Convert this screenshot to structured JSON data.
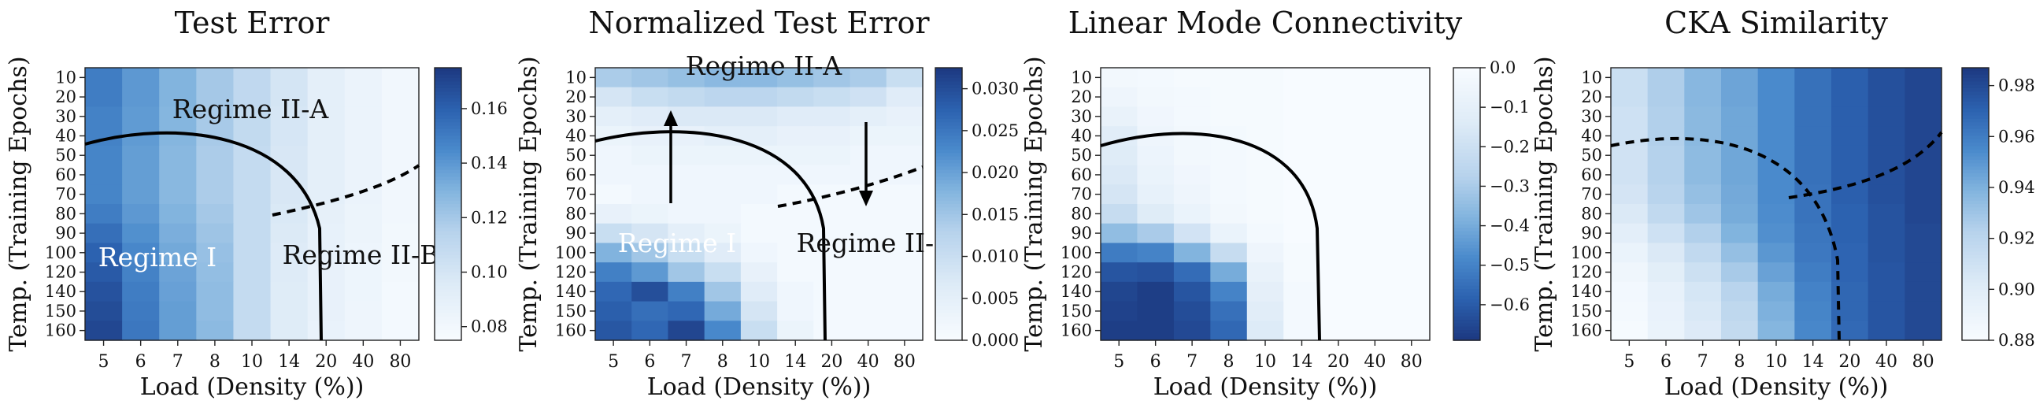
{
  "chart_data": [
    {
      "type": "heatmap",
      "title": "Test Error",
      "xlabel": "Load (Density (%))",
      "ylabel": "Temp. (Training Epochs)",
      "x_categories": [
        "5",
        "6",
        "7",
        "8",
        "10",
        "14",
        "20",
        "40",
        "80"
      ],
      "y_categories": [
        "10",
        "20",
        "30",
        "40",
        "50",
        "60",
        "70",
        "80",
        "90",
        "100",
        "120",
        "140",
        "150",
        "160"
      ],
      "colorbar": {
        "ticks": [
          "0.08",
          "0.10",
          "0.12",
          "0.14",
          "0.16"
        ],
        "min": 0.075,
        "max": 0.175
      },
      "values": [
        [
          0.15,
          0.14,
          0.13,
          0.12,
          0.11,
          0.1,
          0.09,
          0.085,
          0.08
        ],
        [
          0.15,
          0.14,
          0.13,
          0.12,
          0.11,
          0.1,
          0.09,
          0.085,
          0.08
        ],
        [
          0.148,
          0.139,
          0.129,
          0.119,
          0.109,
          0.099,
          0.09,
          0.085,
          0.08
        ],
        [
          0.148,
          0.139,
          0.129,
          0.119,
          0.109,
          0.099,
          0.09,
          0.085,
          0.08
        ],
        [
          0.147,
          0.138,
          0.128,
          0.118,
          0.108,
          0.098,
          0.09,
          0.085,
          0.08
        ],
        [
          0.147,
          0.138,
          0.128,
          0.118,
          0.108,
          0.098,
          0.09,
          0.085,
          0.08
        ],
        [
          0.147,
          0.138,
          0.128,
          0.118,
          0.108,
          0.098,
          0.09,
          0.085,
          0.08
        ],
        [
          0.15,
          0.14,
          0.13,
          0.12,
          0.108,
          0.097,
          0.089,
          0.084,
          0.08
        ],
        [
          0.155,
          0.143,
          0.132,
          0.122,
          0.108,
          0.096,
          0.088,
          0.084,
          0.079
        ],
        [
          0.16,
          0.146,
          0.134,
          0.124,
          0.108,
          0.095,
          0.088,
          0.083,
          0.079
        ],
        [
          0.163,
          0.148,
          0.136,
          0.125,
          0.108,
          0.095,
          0.087,
          0.083,
          0.079
        ],
        [
          0.166,
          0.15,
          0.137,
          0.126,
          0.108,
          0.094,
          0.087,
          0.083,
          0.078
        ],
        [
          0.168,
          0.151,
          0.138,
          0.126,
          0.108,
          0.094,
          0.087,
          0.082,
          0.078
        ],
        [
          0.17,
          0.152,
          0.138,
          0.127,
          0.108,
          0.094,
          0.086,
          0.082,
          0.078
        ]
      ],
      "annotations": [
        "Regime II-A",
        "Regime I",
        "Regime II-B"
      ],
      "boundaries": [
        "solid",
        "dashed"
      ]
    },
    {
      "type": "heatmap",
      "title": "Normalized Test Error",
      "xlabel": "Load (Density (%))",
      "ylabel": "Temp. (Training Epochs)",
      "x_categories": [
        "5",
        "6",
        "7",
        "8",
        "10",
        "14",
        "20",
        "40",
        "80"
      ],
      "y_categories": [
        "10",
        "20",
        "30",
        "40",
        "50",
        "60",
        "70",
        "80",
        "90",
        "100",
        "120",
        "140",
        "150",
        "160"
      ],
      "colorbar": {
        "ticks": [
          "0.000",
          "0.005",
          "0.010",
          "0.015",
          "0.020",
          "0.025",
          "0.030"
        ],
        "min": 0.0,
        "max": 0.0325
      },
      "values": [
        [
          0.014,
          0.015,
          0.016,
          0.017,
          0.017,
          0.016,
          0.015,
          0.014,
          0.01
        ],
        [
          0.008,
          0.01,
          0.011,
          0.012,
          0.012,
          0.011,
          0.01,
          0.009,
          0.006
        ],
        [
          0.005,
          0.006,
          0.007,
          0.007,
          0.007,
          0.006,
          0.006,
          0.005,
          0.004
        ],
        [
          0.003,
          0.004,
          0.004,
          0.005,
          0.005,
          0.004,
          0.004,
          0.003,
          0.003
        ],
        [
          0.002,
          0.003,
          0.003,
          0.003,
          0.003,
          0.003,
          0.003,
          0.002,
          0.002
        ],
        [
          0.002,
          0.002,
          0.002,
          0.002,
          0.002,
          0.002,
          0.002,
          0.002,
          0.002
        ],
        [
          0.001,
          0.002,
          0.002,
          0.002,
          0.002,
          0.001,
          0.001,
          0.001,
          0.001
        ],
        [
          0.004,
          0.003,
          0.002,
          0.002,
          0.001,
          0.001,
          0.001,
          0.001,
          0.001
        ],
        [
          0.01,
          0.008,
          0.005,
          0.003,
          0.001,
          0.001,
          0.001,
          0.001,
          0.001
        ],
        [
          0.018,
          0.015,
          0.01,
          0.006,
          0.002,
          0.001,
          0.001,
          0.001,
          0.001
        ],
        [
          0.024,
          0.021,
          0.015,
          0.01,
          0.004,
          0.001,
          0.001,
          0.001,
          0.001
        ],
        [
          0.027,
          0.03,
          0.024,
          0.015,
          0.006,
          0.002,
          0.001,
          0.001,
          0.001
        ],
        [
          0.028,
          0.026,
          0.027,
          0.019,
          0.008,
          0.002,
          0.001,
          0.001,
          0.001
        ],
        [
          0.029,
          0.027,
          0.031,
          0.023,
          0.01,
          0.003,
          0.001,
          0.001,
          0.001
        ]
      ],
      "annotations": [
        "Regime II-A",
        "Regime I",
        "Regime II-B"
      ],
      "boundaries": [
        "solid",
        "dashed"
      ],
      "arrows": [
        "up",
        "down"
      ]
    },
    {
      "type": "heatmap",
      "title": "Linear Mode Connectivity",
      "xlabel": "Load (Density (%))",
      "ylabel": "Temp. (Training Epochs)",
      "x_categories": [
        "5",
        "6",
        "7",
        "8",
        "10",
        "14",
        "20",
        "40",
        "80"
      ],
      "y_categories": [
        "10",
        "20",
        "30",
        "40",
        "50",
        "60",
        "70",
        "80",
        "90",
        "100",
        "120",
        "140",
        "150",
        "160"
      ],
      "colorbar": {
        "ticks": [
          "0.0",
          "−0.1",
          "−0.2",
          "−0.3",
          "−0.4",
          "−0.5",
          "−0.6"
        ],
        "min": -0.69,
        "max": 0.0
      },
      "values": [
        [
          -0.03,
          -0.02,
          -0.01,
          -0.01,
          -0.01,
          0.0,
          0.0,
          0.0,
          0.0
        ],
        [
          -0.05,
          -0.03,
          -0.02,
          -0.01,
          -0.01,
          0.0,
          0.0,
          0.0,
          0.0
        ],
        [
          -0.08,
          -0.04,
          -0.02,
          -0.01,
          -0.01,
          0.0,
          0.0,
          0.0,
          0.0
        ],
        [
          -0.12,
          -0.05,
          -0.03,
          -0.02,
          -0.01,
          0.0,
          0.0,
          0.0,
          0.0
        ],
        [
          -0.13,
          -0.06,
          -0.03,
          -0.02,
          -0.01,
          0.0,
          0.0,
          0.0,
          0.0
        ],
        [
          -0.15,
          -0.07,
          -0.04,
          -0.02,
          -0.01,
          0.0,
          0.0,
          0.0,
          0.0
        ],
        [
          -0.17,
          -0.09,
          -0.05,
          -0.02,
          -0.01,
          0.0,
          0.0,
          0.0,
          0.0
        ],
        [
          -0.22,
          -0.13,
          -0.07,
          -0.03,
          -0.01,
          0.0,
          0.0,
          0.0,
          0.0
        ],
        [
          -0.35,
          -0.3,
          -0.18,
          -0.07,
          -0.02,
          0.0,
          0.0,
          0.0,
          0.0
        ],
        [
          -0.52,
          -0.5,
          -0.38,
          -0.22,
          -0.05,
          -0.01,
          0.0,
          0.0,
          0.0
        ],
        [
          -0.62,
          -0.63,
          -0.56,
          -0.4,
          -0.08,
          -0.01,
          0.0,
          0.0,
          0.0
        ],
        [
          -0.66,
          -0.68,
          -0.62,
          -0.5,
          -0.1,
          -0.02,
          0.0,
          0.0,
          0.0
        ],
        [
          -0.67,
          -0.68,
          -0.64,
          -0.55,
          -0.12,
          -0.02,
          0.0,
          0.0,
          0.0
        ],
        [
          -0.68,
          -0.68,
          -0.65,
          -0.57,
          -0.14,
          -0.02,
          0.0,
          0.0,
          0.0
        ]
      ],
      "boundaries": [
        "solid"
      ]
    },
    {
      "type": "heatmap",
      "title": "CKA Similarity",
      "xlabel": "Load (Density (%))",
      "ylabel": "Temp. (Training Epochs)",
      "x_categories": [
        "5",
        "6",
        "7",
        "8",
        "10",
        "14",
        "20",
        "40",
        "80"
      ],
      "y_categories": [
        "10",
        "20",
        "30",
        "40",
        "50",
        "60",
        "70",
        "80",
        "90",
        "100",
        "120",
        "140",
        "150",
        "160"
      ],
      "colorbar": {
        "ticks": [
          "0.88",
          "0.90",
          "0.92",
          "0.94",
          "0.96",
          "0.98"
        ],
        "min": 0.88,
        "max": 0.987
      },
      "values": [
        [
          0.912,
          0.925,
          0.937,
          0.945,
          0.955,
          0.965,
          0.972,
          0.978,
          0.982
        ],
        [
          0.912,
          0.925,
          0.937,
          0.945,
          0.955,
          0.965,
          0.972,
          0.978,
          0.982
        ],
        [
          0.91,
          0.924,
          0.936,
          0.944,
          0.955,
          0.965,
          0.972,
          0.978,
          0.982
        ],
        [
          0.91,
          0.924,
          0.936,
          0.944,
          0.955,
          0.965,
          0.972,
          0.978,
          0.982
        ],
        [
          0.909,
          0.923,
          0.935,
          0.944,
          0.955,
          0.965,
          0.972,
          0.978,
          0.982
        ],
        [
          0.909,
          0.923,
          0.935,
          0.944,
          0.955,
          0.965,
          0.972,
          0.978,
          0.982
        ],
        [
          0.907,
          0.921,
          0.933,
          0.943,
          0.955,
          0.964,
          0.972,
          0.978,
          0.982
        ],
        [
          0.903,
          0.917,
          0.93,
          0.942,
          0.954,
          0.964,
          0.971,
          0.977,
          0.982
        ],
        [
          0.897,
          0.91,
          0.924,
          0.939,
          0.953,
          0.963,
          0.971,
          0.977,
          0.981
        ],
        [
          0.891,
          0.903,
          0.917,
          0.933,
          0.95,
          0.962,
          0.97,
          0.977,
          0.981
        ],
        [
          0.887,
          0.898,
          0.911,
          0.927,
          0.946,
          0.96,
          0.97,
          0.976,
          0.981
        ],
        [
          0.884,
          0.894,
          0.906,
          0.921,
          0.942,
          0.958,
          0.969,
          0.976,
          0.981
        ],
        [
          0.883,
          0.892,
          0.904,
          0.918,
          0.94,
          0.957,
          0.969,
          0.976,
          0.981
        ],
        [
          0.882,
          0.891,
          0.902,
          0.916,
          0.938,
          0.956,
          0.968,
          0.976,
          0.981
        ]
      ],
      "boundaries": [
        "dashed",
        "dashed"
      ]
    }
  ],
  "colors": {
    "low": "#f7fbff",
    "high": "#1d3a82"
  }
}
